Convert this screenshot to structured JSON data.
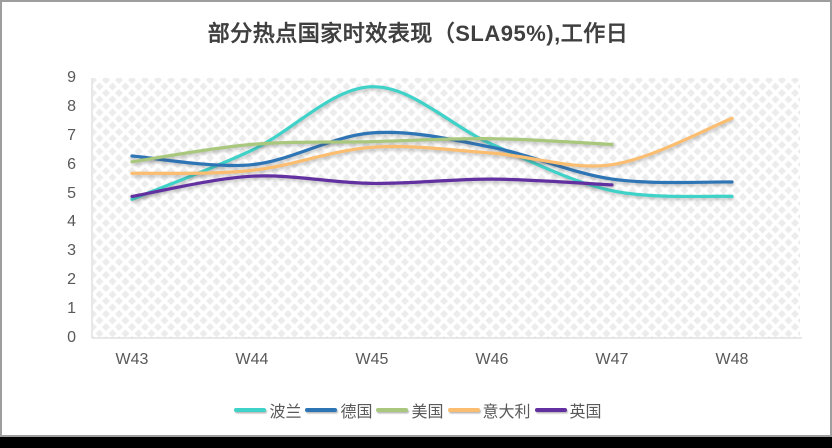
{
  "chart_data": {
    "type": "line",
    "line_style": "smooth",
    "title": "部分热点国家时效表现（SLA95%),工作日",
    "categories": [
      "W43",
      "W44",
      "W45",
      "W46",
      "W47",
      "W48"
    ],
    "series": [
      {
        "name": "波兰",
        "color": "#3ED2C8",
        "values": [
          4.8,
          6.5,
          8.7,
          6.7,
          5.1,
          4.9
        ]
      },
      {
        "name": "德国",
        "color": "#2E75B6",
        "values": [
          6.3,
          6.0,
          7.1,
          6.6,
          5.5,
          5.4
        ]
      },
      {
        "name": "美国",
        "color": "#A9C87E",
        "values": [
          6.1,
          6.7,
          6.8,
          6.9,
          6.7,
          null
        ]
      },
      {
        "name": "意大利",
        "color": "#FBBE70",
        "values": [
          5.7,
          5.8,
          6.6,
          6.4,
          6.0,
          7.6
        ]
      },
      {
        "name": "英国",
        "color": "#6230A0",
        "values": [
          4.9,
          5.6,
          5.35,
          5.5,
          5.3,
          null
        ]
      }
    ],
    "y_axis": {
      "min": 0,
      "max": 9,
      "step": 1,
      "ticks": [
        "0",
        "1",
        "2",
        "3",
        "4",
        "5",
        "6",
        "7",
        "8",
        "9"
      ]
    },
    "x_axis_label": "",
    "y_axis_label": "",
    "legend_position": "bottom",
    "grid": "off"
  },
  "style": {
    "title_color": "#3f3f3f",
    "axis_text_color": "#595959",
    "axis_line_color": "#d9d9d9",
    "plot_pattern_color": "#ececec",
    "canvas_border_color": "#9e9e9e",
    "bottom_bar_color": "#000000"
  }
}
